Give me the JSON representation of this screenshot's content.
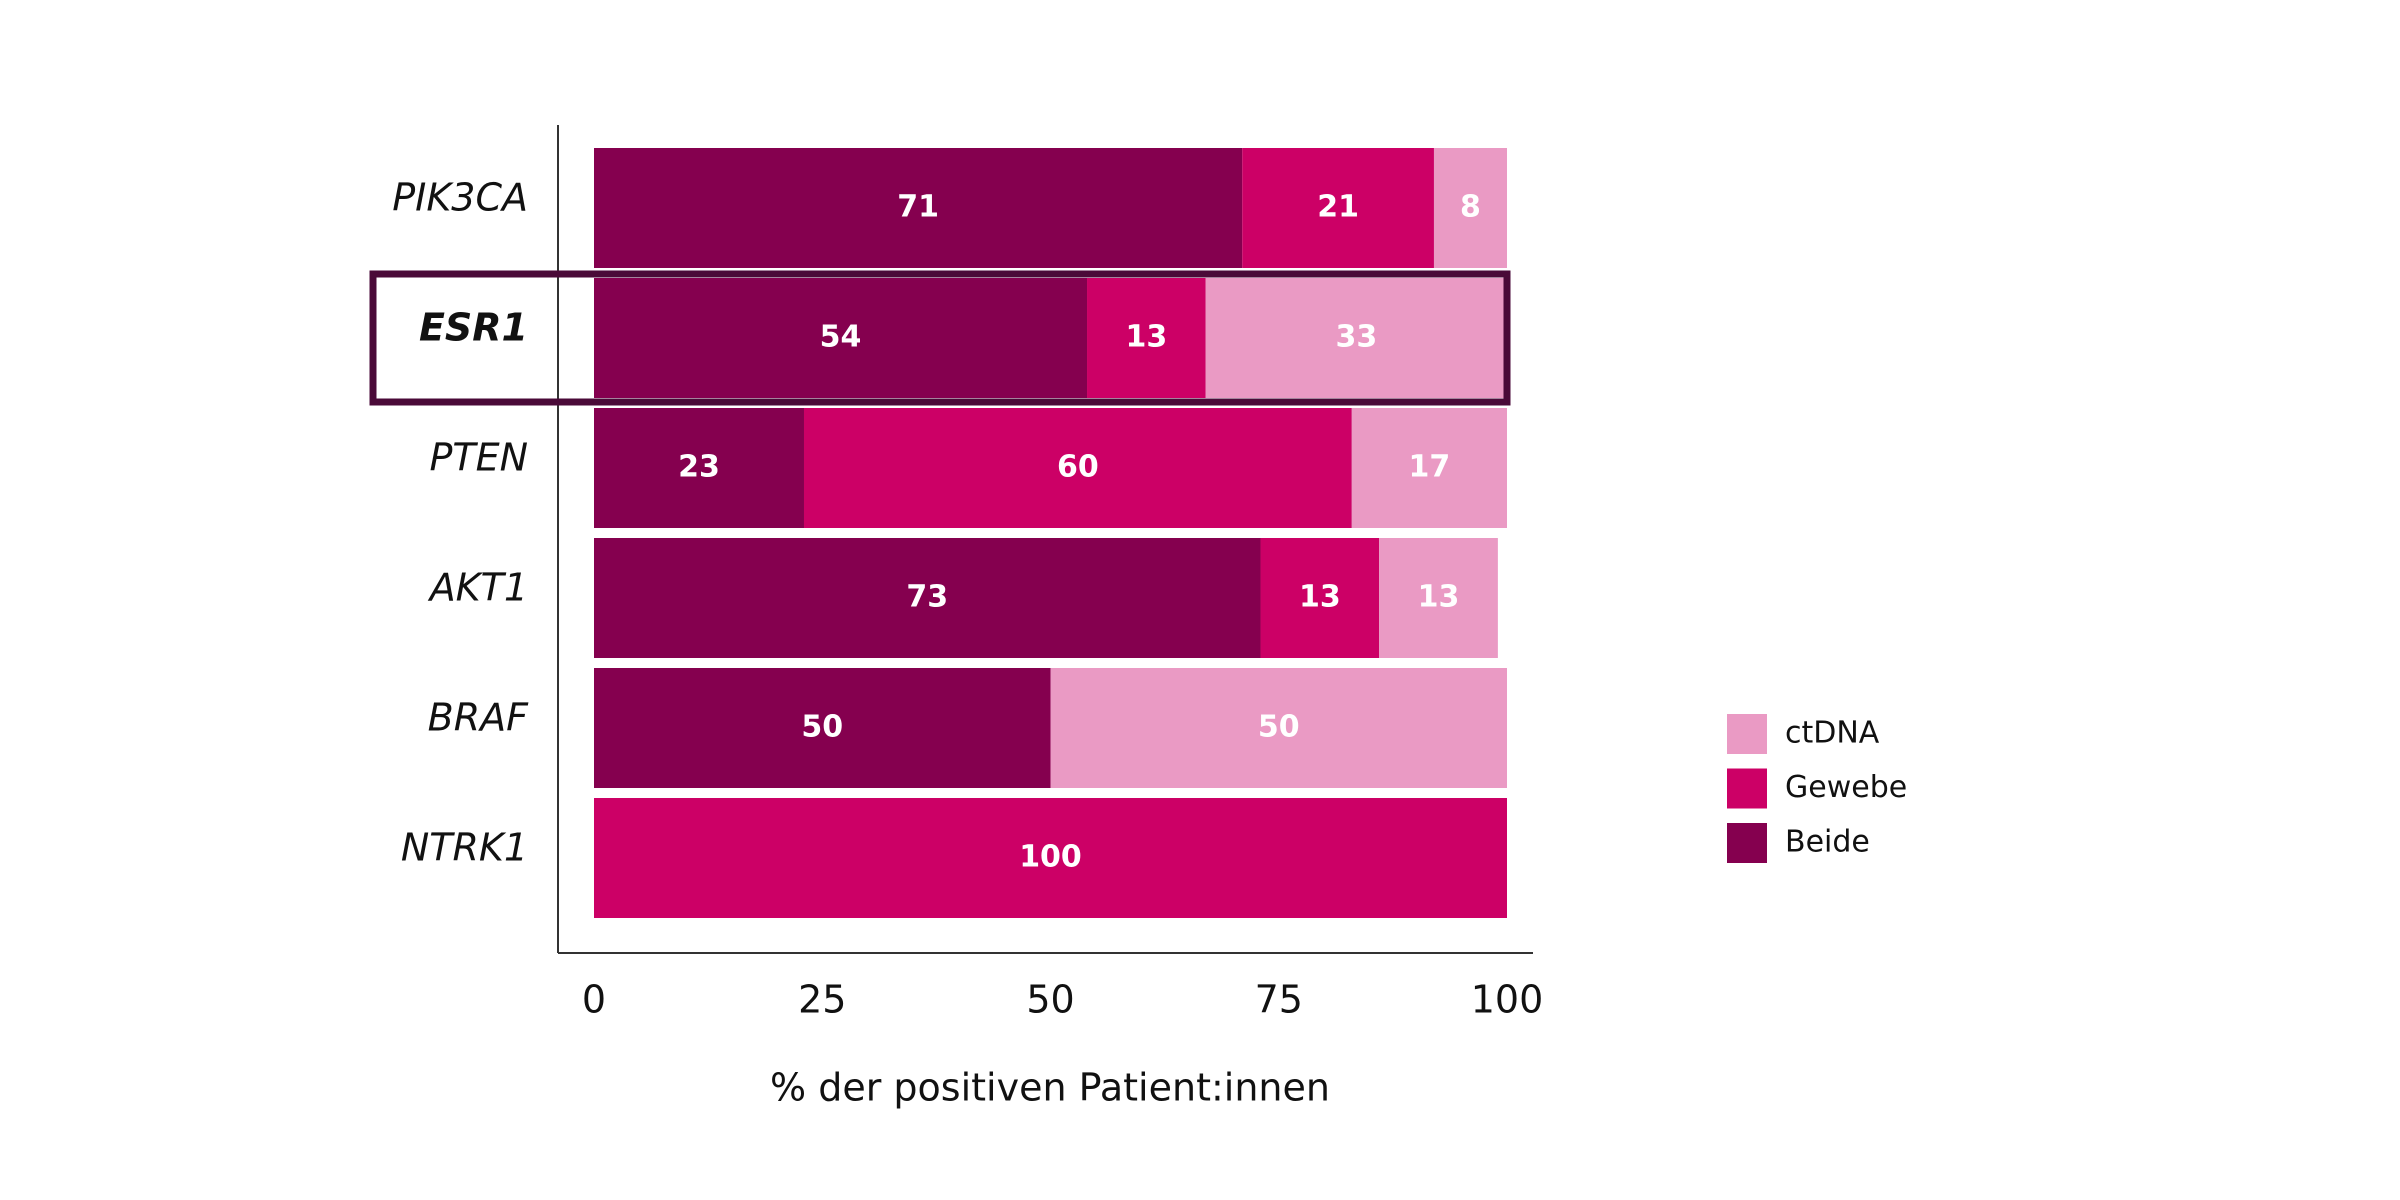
{
  "chart_data": {
    "type": "stacked-barh",
    "xlabel": "% der positiven Patient:innen",
    "categories": [
      "PIK3CA",
      "ESR1",
      "PTEN",
      "AKT1",
      "BRAF",
      "NTRK1"
    ],
    "series": [
      {
        "name": "Beide",
        "color": "#85004f",
        "values": [
          71,
          54,
          23,
          73,
          50,
          0
        ]
      },
      {
        "name": "Gewebe",
        "color": "#cc0066",
        "values": [
          21,
          13,
          60,
          13,
          0,
          100
        ]
      },
      {
        "name": "ctDNA",
        "color": "#ea9ac4",
        "values": [
          8,
          33,
          17,
          13,
          50,
          0
        ]
      }
    ],
    "xlim": [
      0,
      100
    ],
    "xticks": [
      0,
      25,
      50,
      75,
      100
    ],
    "highlight": "ESR1",
    "grid": false,
    "legend": "right"
  }
}
